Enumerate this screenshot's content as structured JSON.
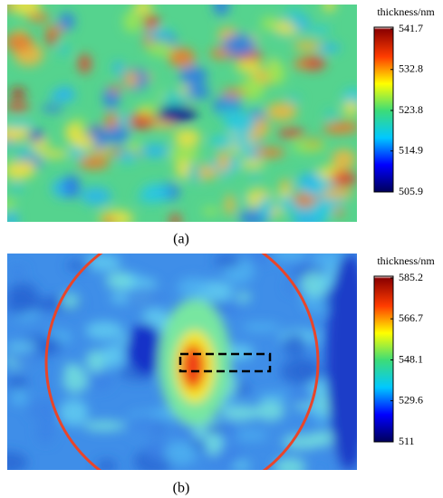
{
  "chart_data": [
    {
      "type": "heatmap",
      "caption": "(a)",
      "colorbar_label": "thickness/nm",
      "clim": [
        505.9,
        541.7
      ],
      "cticks": [
        505.9,
        514.9,
        523.8,
        532.8,
        541.7
      ],
      "colormap": [
        "#00005a",
        "#0000ff",
        "#00c8ff",
        "#3cdc78",
        "#ffff00",
        "#ff3c00",
        "#8c0000",
        "#ffffff"
      ]
    },
    {
      "type": "heatmap",
      "caption": "(b)",
      "colorbar_label": "thickness/nm",
      "clim": [
        511.0,
        585.2
      ],
      "cticks": [
        511.0,
        529.6,
        548.1,
        566.7,
        585.2
      ],
      "colormap": [
        "#00005a",
        "#0000ff",
        "#00c8ff",
        "#3cdc78",
        "#ffff00",
        "#ff3c00",
        "#8c0000",
        "#ffffff"
      ]
    }
  ]
}
